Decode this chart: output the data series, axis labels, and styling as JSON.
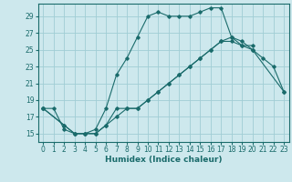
{
  "xlabel": "Humidex (Indice chaleur)",
  "background_color": "#cde8ed",
  "grid_color": "#a0cdd5",
  "line_color": "#1a6b6b",
  "xlim": [
    -0.5,
    23.5
  ],
  "ylim": [
    14.0,
    30.5
  ],
  "xticks": [
    0,
    1,
    2,
    3,
    4,
    5,
    6,
    7,
    8,
    9,
    10,
    11,
    12,
    13,
    14,
    15,
    16,
    17,
    18,
    19,
    20,
    21,
    22,
    23
  ],
  "yticks": [
    15,
    17,
    19,
    21,
    23,
    25,
    27,
    29
  ],
  "line1_x": [
    0,
    1,
    2,
    3,
    4,
    5,
    6,
    7,
    8,
    9,
    10,
    11,
    12,
    13,
    14,
    15,
    16,
    17,
    18,
    19,
    20,
    21,
    22,
    23
  ],
  "line1_y": [
    18,
    18,
    15.5,
    15,
    15,
    15,
    16,
    17,
    18,
    18,
    19,
    20,
    21,
    22,
    23,
    24,
    25,
    26,
    26,
    25.5,
    25,
    24,
    23,
    20
  ],
  "line2_x": [
    0,
    2,
    3,
    4,
    5,
    6,
    7,
    8,
    9,
    10,
    11,
    12,
    13,
    14,
    15,
    16,
    17,
    18,
    19,
    20
  ],
  "line2_y": [
    18,
    16,
    15,
    15,
    15.5,
    18,
    22,
    24,
    26.5,
    29,
    29.5,
    29,
    29,
    29,
    29.5,
    30,
    30,
    26.5,
    25.5,
    25.5
  ],
  "line3_x": [
    0,
    2,
    3,
    4,
    5,
    6,
    7,
    8,
    9,
    10,
    11,
    12,
    13,
    14,
    15,
    16,
    17,
    18,
    19,
    20,
    23
  ],
  "line3_y": [
    18,
    16,
    15,
    15,
    15,
    16,
    18,
    18,
    18,
    19,
    20,
    21,
    22,
    23,
    24,
    25,
    26,
    26.5,
    26,
    25,
    20
  ]
}
